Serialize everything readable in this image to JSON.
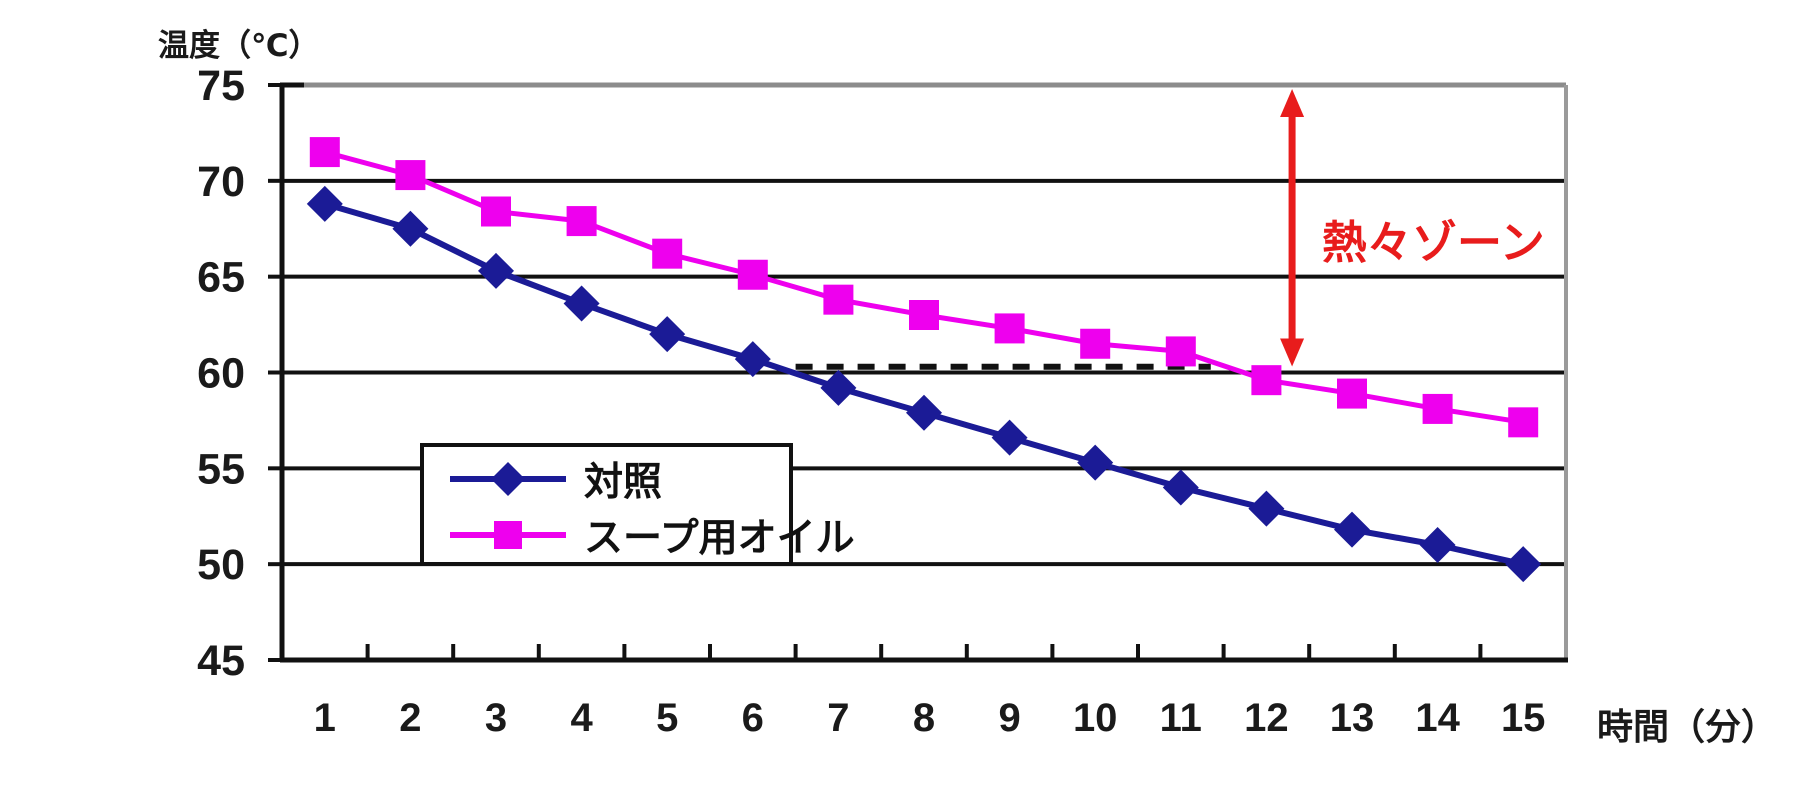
{
  "chart_data": {
    "type": "line",
    "title": "",
    "xlabel": "時間（分）",
    "ylabel": "温度（℃）",
    "categories": [
      1,
      2,
      3,
      4,
      5,
      6,
      7,
      8,
      9,
      10,
      11,
      12,
      13,
      14,
      15
    ],
    "series": [
      {
        "name": "対照",
        "marker": "diamond",
        "color": "#1b1b96",
        "values": [
          68.8,
          67.5,
          65.3,
          63.6,
          62.0,
          60.7,
          59.2,
          57.9,
          56.6,
          55.3,
          54.0,
          52.9,
          51.8,
          51.0,
          50.0
        ]
      },
      {
        "name": "スープ用オイル",
        "marker": "square",
        "color": "#ee00ee",
        "values": [
          71.5,
          70.3,
          68.4,
          67.9,
          66.2,
          65.1,
          63.8,
          63.0,
          62.3,
          61.5,
          61.1,
          59.6,
          58.9,
          58.1,
          57.4
        ]
      }
    ],
    "ylim": [
      45,
      75
    ],
    "yticks": [
      75,
      70,
      65,
      60,
      55,
      50,
      45
    ],
    "grid": "horizontal-major",
    "legend_position": "inside-left",
    "annotations": {
      "hot_zone_label": {
        "text": "熱々ゾーン",
        "color": "#e81c1c",
        "y_range": [
          60,
          75
        ]
      },
      "dashed_reference_line": {
        "y": 60.3,
        "x_from": 6.5,
        "x_to": 11.35,
        "color": "#111111"
      },
      "range_arrow": {
        "x": 12.3,
        "y_from": 60,
        "y_to": 75,
        "color": "#e81c1c"
      }
    },
    "frame_colors": {
      "top": "#8c8c8c",
      "right": "#9a9a9a",
      "left": "#111111",
      "bottom": "#111111"
    },
    "tick_label_color": "#1a1a1a"
  }
}
